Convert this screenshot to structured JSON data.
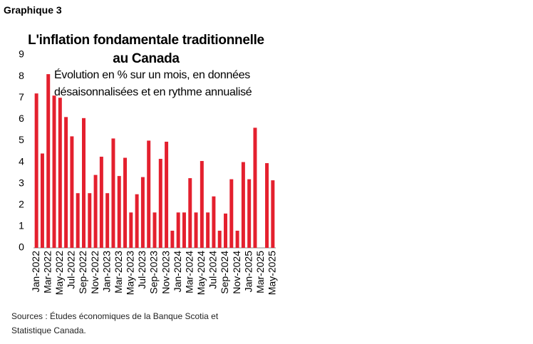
{
  "label": "Graphique 3",
  "chart_data": {
    "type": "bar",
    "title": "L'inflation fondamentale traditionnelle au Canada",
    "subtitle": "Évolution en % sur un mois, en données désaisonnalisées et en rythme annualisé",
    "categories": [
      "Jan-2022",
      null,
      "Mar-2022",
      null,
      "May-2022",
      null,
      "Jul-2022",
      null,
      "Sep-2022",
      null,
      "Nov-2022",
      null,
      "Jan-2023",
      null,
      "Mar-2023",
      null,
      "May-2023",
      null,
      "Jul-2023",
      null,
      "Sep-2023",
      null,
      "Nov-2023",
      null,
      "Jan-2024",
      null,
      "Mar-2024",
      null,
      "May-2024",
      null,
      "Jul-2024",
      null,
      "Sep-2024",
      null,
      "Nov-2024",
      null,
      "Jan-2025",
      null,
      "Mar-2025",
      null,
      "May-2025"
    ],
    "values": [
      7.2,
      4.4,
      8.1,
      7.1,
      7.0,
      6.1,
      5.2,
      2.55,
      6.05,
      2.55,
      3.4,
      4.25,
      2.55,
      5.1,
      3.35,
      4.2,
      1.65,
      2.5,
      3.3,
      5.0,
      1.65,
      4.15,
      4.95,
      0.8,
      1.65,
      1.65,
      3.25,
      1.65,
      4.05,
      1.65,
      2.4,
      0.8,
      1.6,
      3.2,
      0.8,
      4.0,
      3.2,
      5.6,
      0,
      3.95,
      3.15
    ],
    "color": "#e4202e",
    "ylim": [
      0,
      9
    ],
    "yticks": [
      0,
      1,
      2,
      3,
      4,
      5,
      6,
      7,
      8,
      9
    ],
    "grid": false,
    "source": "Sources : Études économiques de la Banque Scotia et Statistique Canada."
  }
}
